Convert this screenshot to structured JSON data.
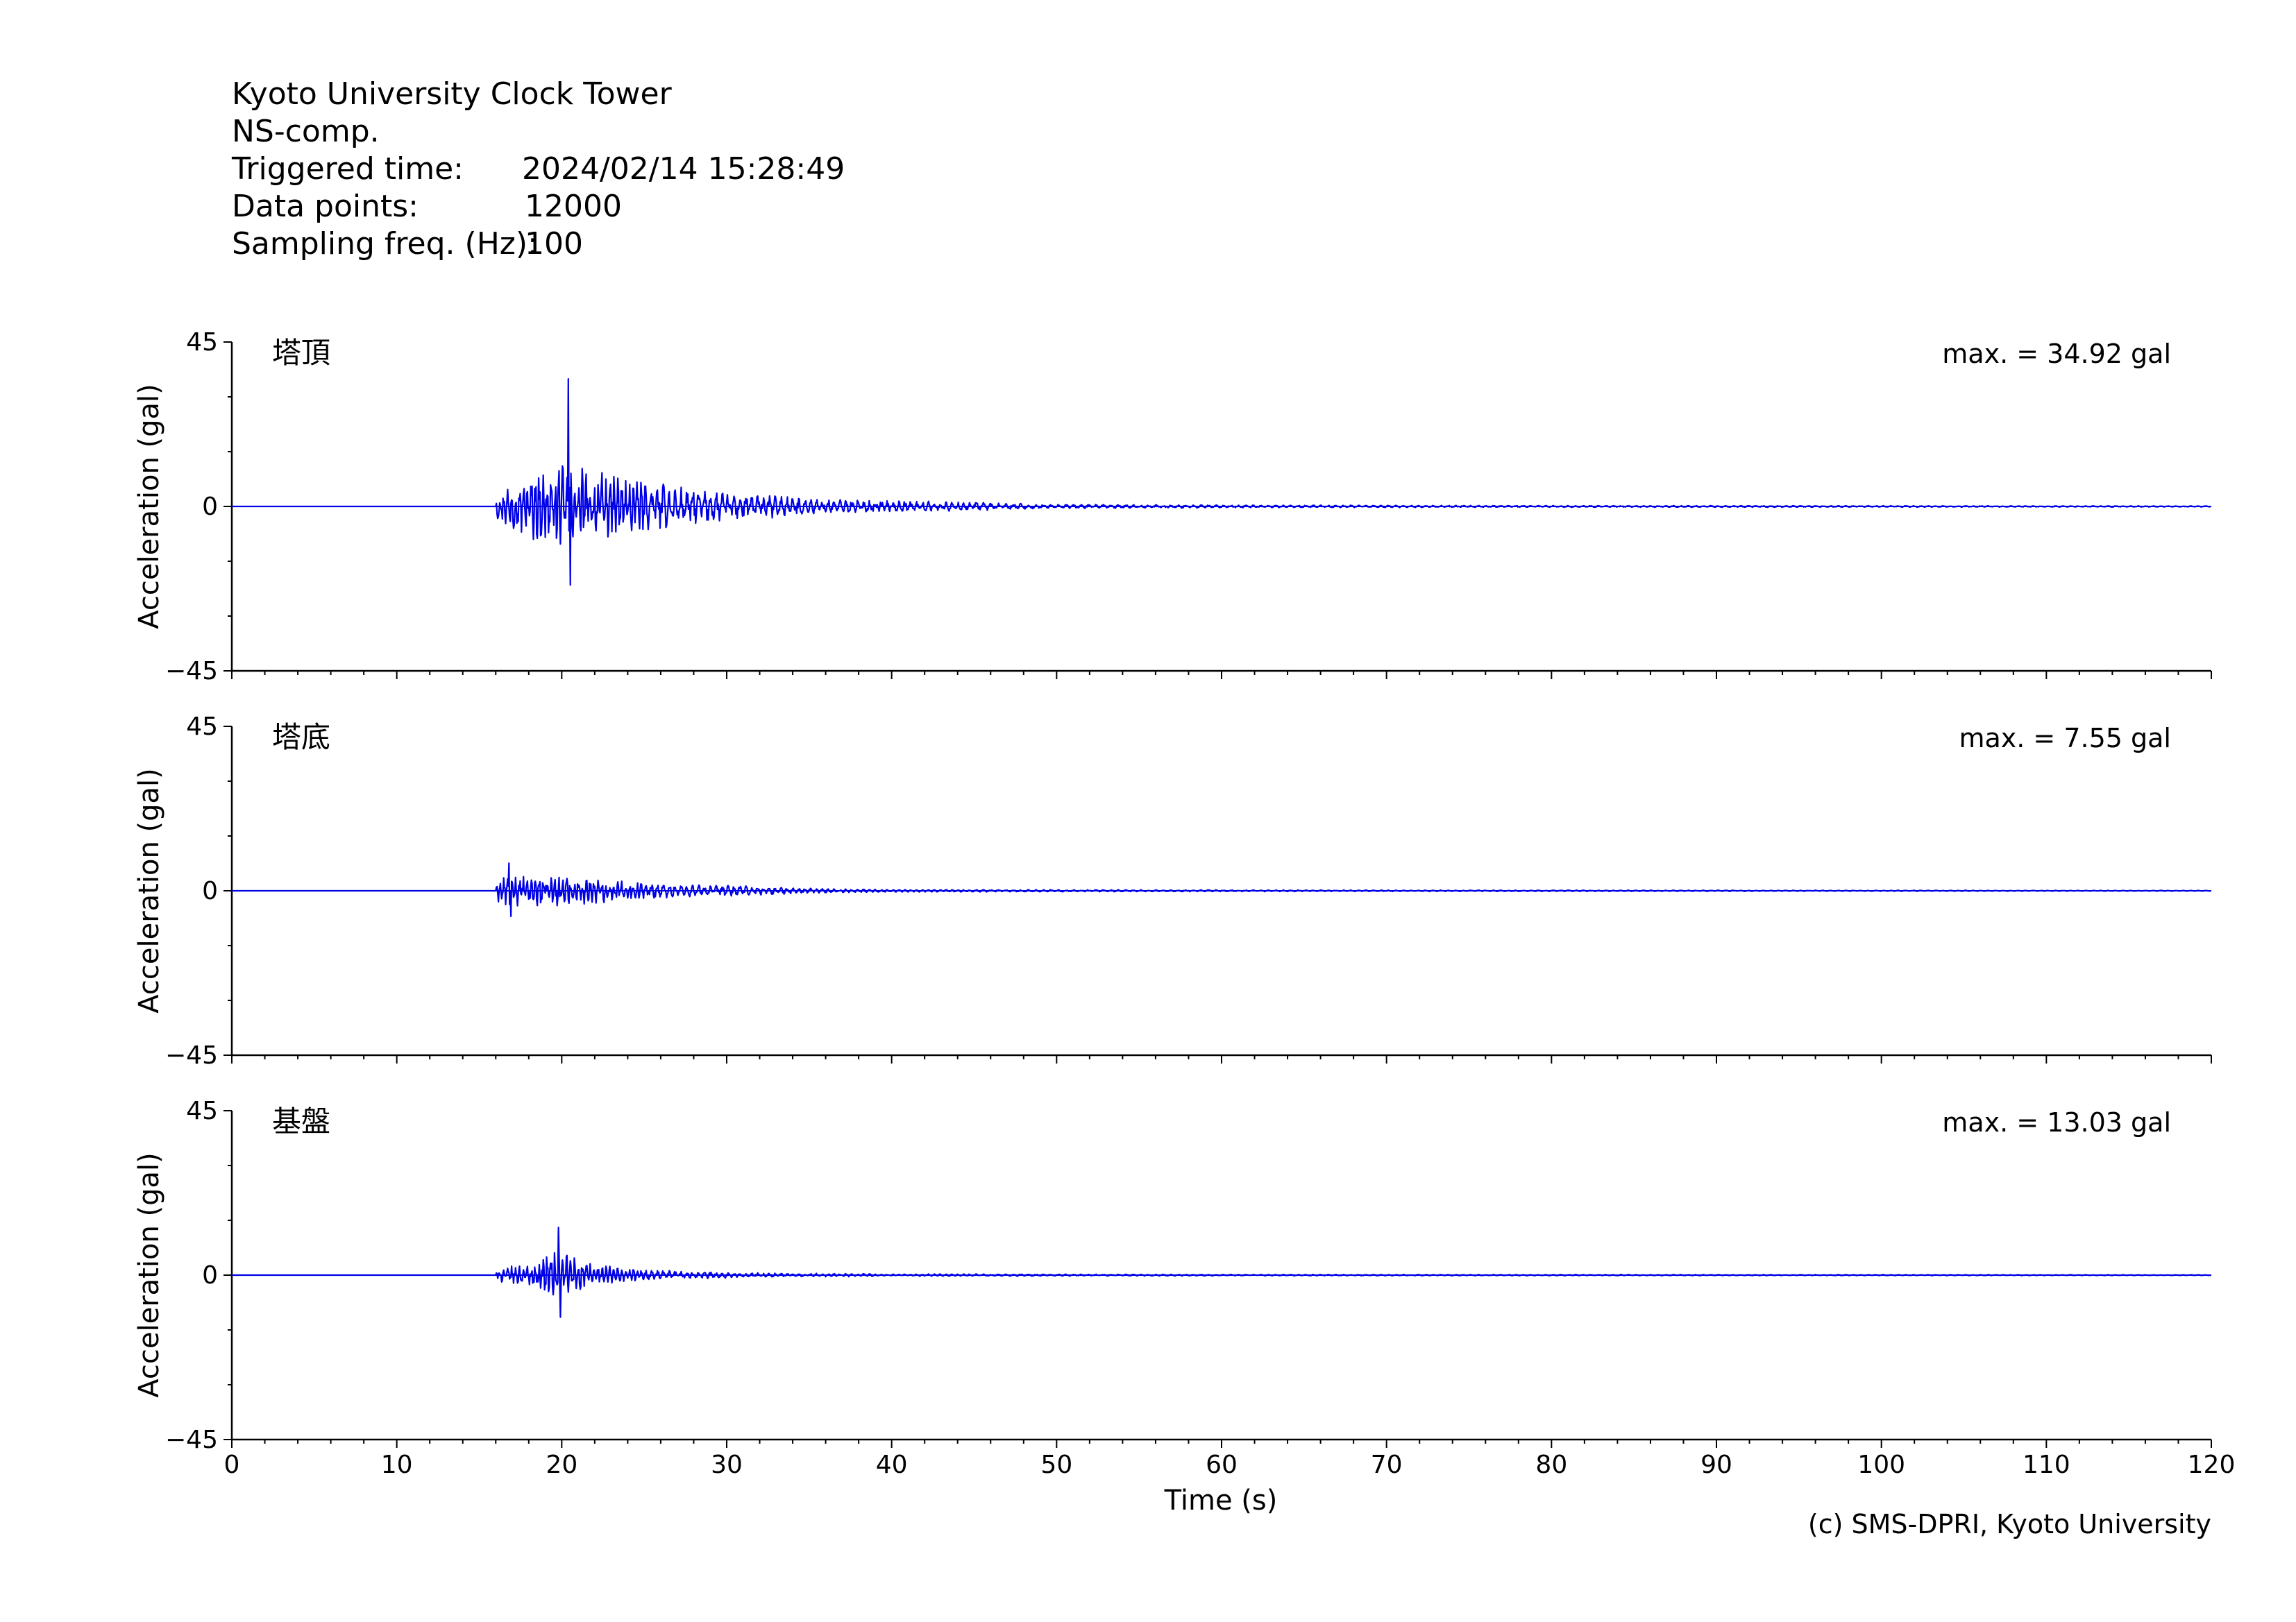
{
  "header": {
    "station": "Kyoto University Clock Tower",
    "component": "NS-comp.",
    "triggered_label": "Triggered time:",
    "triggered_value": "2024/02/14 15:28:49",
    "points_label": "Data points:",
    "points_value": "12000",
    "freq_label": "Sampling freq. (Hz):",
    "freq_value": "100"
  },
  "credit": "(c) SMS-DPRI, Kyoto University",
  "line_color": "#0000e6",
  "chart_data": {
    "type": "line",
    "xlabel": "Time (s)",
    "ylabel": "Acceleration (gal)",
    "xlim": [
      0,
      120
    ],
    "ylim": [
      -45,
      45
    ],
    "x_ticks": [
      0,
      10,
      20,
      30,
      40,
      50,
      60,
      70,
      80,
      90,
      100,
      110,
      120
    ],
    "y_ticks": [
      -45,
      0,
      45
    ],
    "onset_time": 16,
    "series": [
      {
        "name": "塔頂",
        "max_label": "max. = 34.92 gal",
        "peak_positive": 34.92,
        "peak_negative": -21.5,
        "peak_time": 20.4,
        "envelope": [
          [
            16,
            4
          ],
          [
            18,
            9
          ],
          [
            20,
            12
          ],
          [
            22,
            10
          ],
          [
            25,
            7
          ],
          [
            28,
            5
          ],
          [
            32,
            3.5
          ],
          [
            36,
            2
          ],
          [
            40,
            1.6
          ],
          [
            45,
            1.2
          ],
          [
            50,
            0.6
          ],
          [
            60,
            0.4
          ],
          [
            80,
            0.25
          ],
          [
            120,
            0.15
          ]
        ]
      },
      {
        "name": "塔底",
        "max_label": "max. = 7.55 gal",
        "peak_positive": 7.55,
        "peak_negative": -7.0,
        "peak_time": 16.8,
        "envelope": [
          [
            16,
            4
          ],
          [
            18,
            4.2
          ],
          [
            20,
            4.5
          ],
          [
            22,
            3.5
          ],
          [
            25,
            2.2
          ],
          [
            28,
            1.8
          ],
          [
            32,
            1.2
          ],
          [
            36,
            0.6
          ],
          [
            40,
            0.35
          ],
          [
            50,
            0.3
          ],
          [
            70,
            0.2
          ],
          [
            120,
            0.1
          ]
        ]
      },
      {
        "name": "基盤",
        "max_label": "max. = 13.03 gal",
        "peak_positive": 13.03,
        "peak_negative": -11.5,
        "peak_time": 19.8,
        "envelope": [
          [
            16,
            2
          ],
          [
            18,
            3
          ],
          [
            19.5,
            7
          ],
          [
            20.5,
            6
          ],
          [
            22,
            3
          ],
          [
            25,
            1.5
          ],
          [
            28,
            1
          ],
          [
            32,
            0.6
          ],
          [
            40,
            0.35
          ],
          [
            60,
            0.2
          ],
          [
            120,
            0.1
          ]
        ]
      }
    ]
  }
}
